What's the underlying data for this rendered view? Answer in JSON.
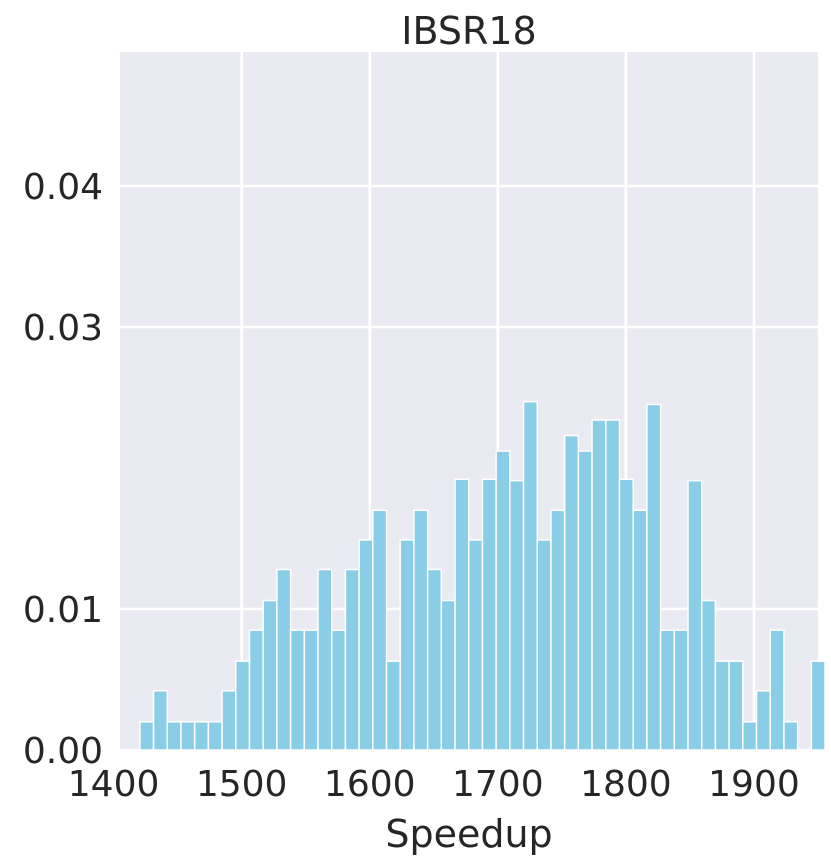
{
  "chart_data": {
    "type": "bar",
    "title": "IBSR18",
    "xlabel": "Speedup",
    "ylabel": "",
    "xlim": [
      1405,
      1950
    ],
    "ylim": [
      0,
      0.0495
    ],
    "x_ticks": [
      1400,
      1500,
      1600,
      1700,
      1800,
      1900
    ],
    "x_tick_labels": [
      "1400",
      "1500",
      "1600",
      "1700",
      "1800",
      "1900"
    ],
    "y_ticks": [
      0.0,
      0.01,
      0.03,
      0.04
    ],
    "y_tick_labels": [
      "0.00",
      "0.01",
      "0.03",
      "0.04"
    ],
    "grid": true,
    "legend": "none",
    "bin_start": 1420.5,
    "bin_width": 10.7,
    "values": [
      0.002,
      0.0042,
      0.002,
      0.002,
      0.002,
      0.002,
      0.0042,
      0.0063,
      0.0085,
      0.0106,
      0.0128,
      0.0085,
      0.0085,
      0.0128,
      0.0085,
      0.0128,
      0.0149,
      0.017,
      0.0063,
      0.0149,
      0.017,
      0.0128,
      0.0106,
      0.0192,
      0.0149,
      0.0192,
      0.0212,
      0.0191,
      0.0247,
      0.0149,
      0.017,
      0.0223,
      0.0212,
      0.0234,
      0.0234,
      0.0192,
      0.017,
      0.0245,
      0.0085,
      0.0085,
      0.0191,
      0.0106,
      0.0063,
      0.0063,
      0.002,
      0.0042,
      0.0085,
      0.002,
      0.0,
      0.0063
    ],
    "colors": {
      "bar": "#89cde6",
      "background": "#eaeaf2",
      "grid": "#ffffff",
      "text": "#262626"
    }
  }
}
